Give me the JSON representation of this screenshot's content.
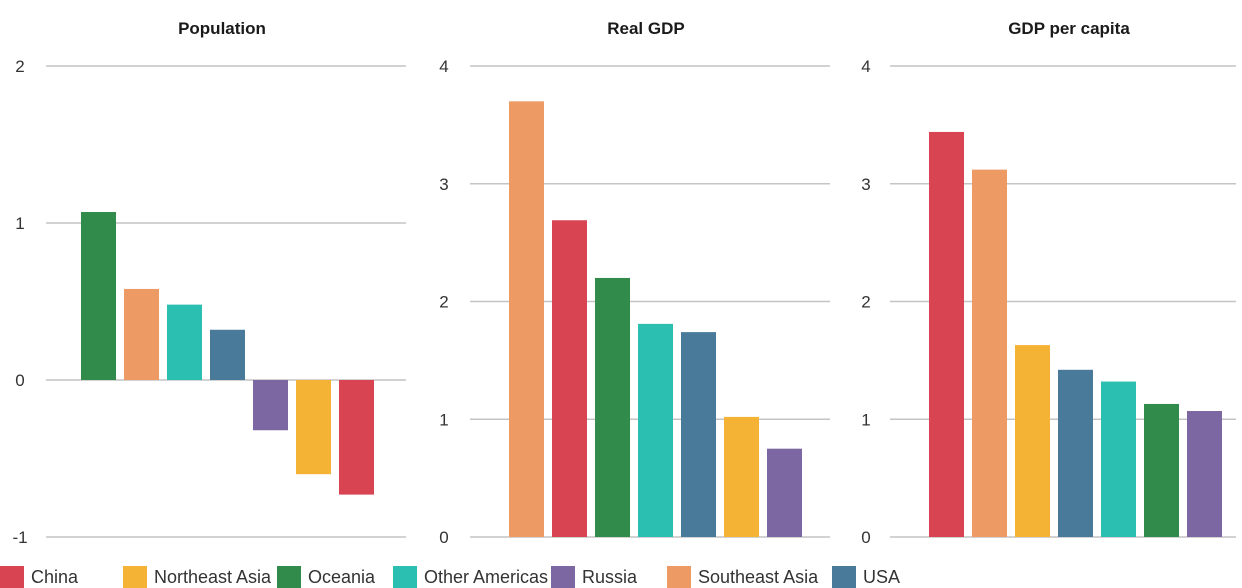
{
  "chart_data": [
    {
      "type": "bar",
      "title": "Population",
      "categories": [
        "Oceania",
        "Southeast Asia",
        "Other Americas",
        "USA",
        "Russia",
        "Northeast Asia",
        "China"
      ],
      "values": [
        1.07,
        0.58,
        0.48,
        0.32,
        -0.32,
        -0.6,
        -0.73
      ],
      "ylim": [
        -1,
        2
      ],
      "yticks": [
        "-1",
        "0",
        "1",
        "2"
      ],
      "grid": true
    },
    {
      "type": "bar",
      "title": "Real GDP",
      "categories": [
        "Southeast Asia",
        "China",
        "Oceania",
        "Other Americas",
        "USA",
        "Northeast Asia",
        "Russia"
      ],
      "values": [
        3.7,
        2.69,
        2.2,
        1.81,
        1.74,
        1.02,
        0.75
      ],
      "ylim": [
        0,
        4
      ],
      "yticks": [
        "0",
        "1",
        "2",
        "3",
        "4"
      ],
      "grid": true
    },
    {
      "type": "bar",
      "title": "GDP per capita",
      "categories": [
        "China",
        "Southeast Asia",
        "Northeast Asia",
        "USA",
        "Other Americas",
        "Oceania",
        "Russia"
      ],
      "values": [
        3.44,
        3.12,
        1.63,
        1.42,
        1.32,
        1.13,
        1.07
      ],
      "ylim": [
        0,
        4
      ],
      "yticks": [
        "0",
        "1",
        "2",
        "3",
        "4"
      ],
      "grid": true
    }
  ],
  "legend": {
    "placement": "bottom",
    "items": [
      {
        "label": "China",
        "color": "#d94452"
      },
      {
        "label": "Northeast Asia",
        "color": "#f5b335"
      },
      {
        "label": "Oceania",
        "color": "#318b4b"
      },
      {
        "label": "Other Americas",
        "color": "#2bbfb1"
      },
      {
        "label": "Russia",
        "color": "#7d67a2"
      },
      {
        "label": "Southeast Asia",
        "color": "#ee9a64"
      },
      {
        "label": "USA",
        "color": "#4a7a9a"
      }
    ]
  }
}
